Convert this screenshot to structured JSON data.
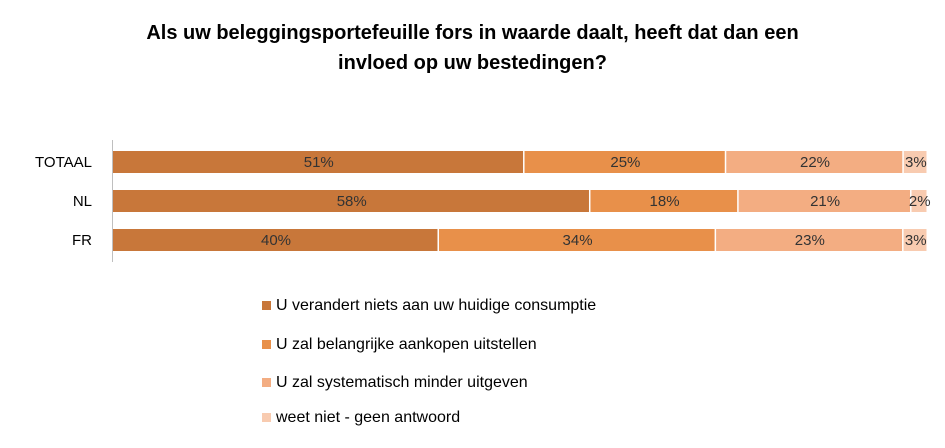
{
  "chart_data": {
    "type": "bar",
    "orientation": "horizontal",
    "stacked": true,
    "percent": true,
    "title_line1": "Als uw beleggingsportefeuille fors in waarde daalt, heeft dat dan een",
    "title_line2": "invloed op uw bestedingen?",
    "categories": [
      "TOTAAL",
      "NL",
      "FR"
    ],
    "series": [
      {
        "name": "U verandert niets aan uw huidige consumptie",
        "values": [
          51,
          58,
          40
        ],
        "labels": [
          "51%",
          "58%",
          "40%"
        ],
        "color": "#c8773a"
      },
      {
        "name": "U zal belangrijke aankopen uitstellen",
        "values": [
          25,
          18,
          34
        ],
        "labels": [
          "25%",
          "18%",
          "34%"
        ],
        "color": "#e8904a"
      },
      {
        "name": "U zal systematisch minder uitgeven",
        "values": [
          22,
          21,
          23
        ],
        "labels": [
          "22%",
          "21%",
          "23%"
        ],
        "color": "#f3ad82"
      },
      {
        "name": "weet niet - geen antwoord",
        "values": [
          3,
          2,
          3
        ],
        "labels": [
          "3%",
          "2%",
          "3%"
        ],
        "color": "#f8cbb0"
      }
    ],
    "xlim": [
      0,
      100
    ],
    "legend_position": "bottom",
    "grid": false
  }
}
